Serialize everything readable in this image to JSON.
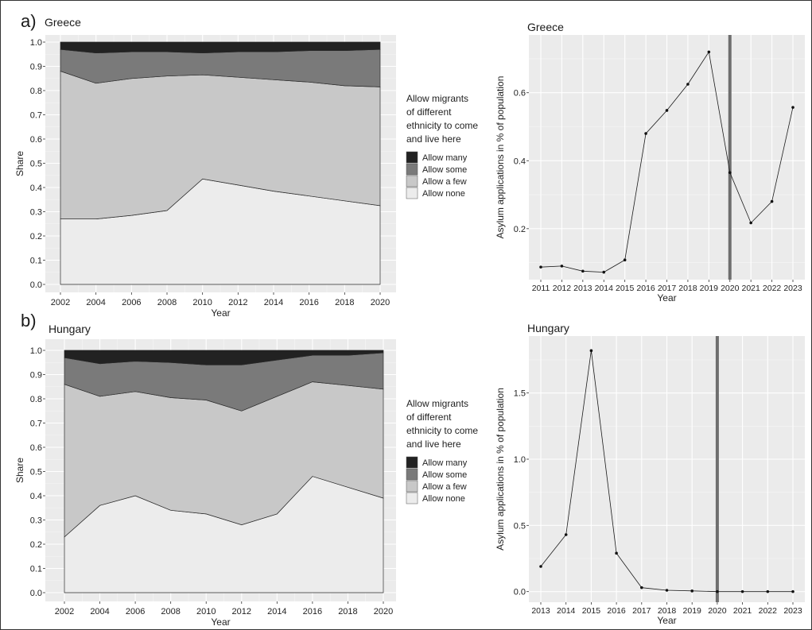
{
  "panels": {
    "a": {
      "label": "a)"
    },
    "b": {
      "label": "b)"
    }
  },
  "chart_data": [
    {
      "id": "greece-share",
      "type": "area",
      "title": "Greece",
      "xlabel": "Year",
      "ylabel": "Share",
      "xlim": [
        2002,
        2020
      ],
      "ylim": [
        0,
        1
      ],
      "x_ticks": [
        2002,
        2004,
        2006,
        2008,
        2010,
        2012,
        2014,
        2016,
        2018,
        2020
      ],
      "y_ticks": [
        0.0,
        0.1,
        0.2,
        0.3,
        0.4,
        0.5,
        0.6,
        0.7,
        0.8,
        0.9,
        1.0
      ],
      "grid": true,
      "legend": {
        "title_lines": [
          "Allow migrants",
          "of different",
          "ethnicity to come",
          "and live here"
        ],
        "placement": "right"
      },
      "x": [
        2002,
        2004,
        2006,
        2008,
        2010,
        2012,
        2014,
        2016,
        2018,
        2020
      ],
      "series": [
        {
          "name": "Allow none",
          "color": "#ececec",
          "values": [
            0.27,
            0.27,
            0.285,
            0.305,
            0.435,
            0.41,
            0.385,
            0.365,
            0.345,
            0.325
          ]
        },
        {
          "name": "Allow a few",
          "color": "#c8c8c8",
          "values": [
            0.61,
            0.56,
            0.565,
            0.555,
            0.43,
            0.445,
            0.46,
            0.47,
            0.475,
            0.49
          ]
        },
        {
          "name": "Allow some",
          "color": "#7a7a7a",
          "values": [
            0.09,
            0.125,
            0.11,
            0.1,
            0.09,
            0.105,
            0.115,
            0.13,
            0.145,
            0.155
          ]
        },
        {
          "name": "Allow many",
          "color": "#222222",
          "values": [
            0.03,
            0.045,
            0.04,
            0.04,
            0.045,
            0.04,
            0.04,
            0.035,
            0.035,
            0.03
          ]
        }
      ]
    },
    {
      "id": "greece-asylum",
      "type": "line",
      "title": "Greece",
      "xlabel": "Year",
      "ylabel": "Asylum applications in % of population",
      "ylim": [
        0.05,
        0.77
      ],
      "y_ticks": [
        0.2,
        0.4,
        0.6
      ],
      "y_tick_labels": [
        "0.2",
        "0.4",
        "0.6"
      ],
      "categories": [
        "2011",
        "2012",
        "2013",
        "2014",
        "2015",
        "2016",
        "2017",
        "2018",
        "2019",
        "2020",
        "2021",
        "2022",
        "2023"
      ],
      "values": [
        0.087,
        0.09,
        0.075,
        0.072,
        0.108,
        0.48,
        0.548,
        0.625,
        0.72,
        0.365,
        0.217,
        0.28,
        0.557
      ],
      "marker_year": "2020",
      "grid": true
    },
    {
      "id": "hungary-share",
      "type": "area",
      "title": "Hungary",
      "xlabel": "Year",
      "ylabel": "Share",
      "xlim": [
        2002,
        2020
      ],
      "ylim": [
        0,
        1
      ],
      "x_ticks": [
        2002,
        2004,
        2006,
        2008,
        2010,
        2012,
        2014,
        2016,
        2018,
        2020
      ],
      "y_ticks": [
        0.0,
        0.1,
        0.2,
        0.3,
        0.4,
        0.5,
        0.6,
        0.7,
        0.8,
        0.9,
        1.0
      ],
      "grid": true,
      "legend": {
        "title_lines": [
          "Allow migrants",
          "of different",
          "ethnicity to come",
          "and live here"
        ],
        "placement": "right"
      },
      "x": [
        2002,
        2004,
        2006,
        2008,
        2010,
        2012,
        2014,
        2016,
        2018,
        2020
      ],
      "series": [
        {
          "name": "Allow none",
          "color": "#ececec",
          "values": [
            0.23,
            0.36,
            0.4,
            0.34,
            0.325,
            0.28,
            0.325,
            0.48,
            0.435,
            0.39
          ]
        },
        {
          "name": "Allow a few",
          "color": "#c8c8c8",
          "values": [
            0.63,
            0.45,
            0.43,
            0.465,
            0.47,
            0.47,
            0.485,
            0.39,
            0.42,
            0.45
          ]
        },
        {
          "name": "Allow some",
          "color": "#7a7a7a",
          "values": [
            0.11,
            0.135,
            0.125,
            0.145,
            0.145,
            0.19,
            0.15,
            0.11,
            0.125,
            0.15
          ]
        },
        {
          "name": "Allow many",
          "color": "#222222",
          "values": [
            0.03,
            0.055,
            0.045,
            0.05,
            0.06,
            0.06,
            0.04,
            0.02,
            0.02,
            0.01
          ]
        }
      ]
    },
    {
      "id": "hungary-asylum",
      "type": "line",
      "title": "Hungary",
      "xlabel": "Year",
      "ylabel": "Asylum applications in % of population",
      "ylim": [
        -0.08,
        1.93
      ],
      "y_ticks": [
        0.0,
        0.5,
        1.0,
        1.5
      ],
      "y_tick_labels": [
        "0.0",
        "0.5",
        "1.0",
        "1.5"
      ],
      "categories": [
        "2013",
        "2014",
        "2015",
        "2016",
        "2017",
        "2018",
        "2019",
        "2020",
        "2021",
        "2022",
        "2023"
      ],
      "values": [
        0.19,
        0.43,
        1.82,
        0.29,
        0.03,
        0.01,
        0.005,
        0.0,
        0.0,
        0.0,
        0.0
      ],
      "marker_year": "2020",
      "grid": true
    }
  ]
}
